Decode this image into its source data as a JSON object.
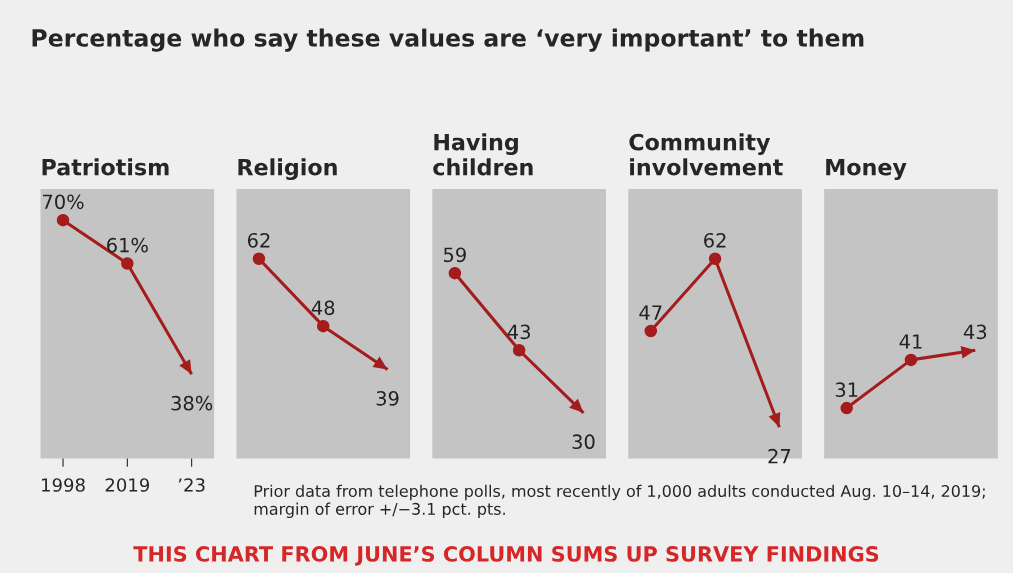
{
  "chart_data": [
    {
      "type": "line",
      "title": "Patriotism",
      "categories": [
        "1998",
        "2019",
        "’23"
      ],
      "values": [
        70,
        61,
        38
      ],
      "value_labels": [
        "70%",
        "61%",
        "38%"
      ],
      "color": "#a51c1c",
      "marker": "circle",
      "line_style": "solid",
      "tick_labels": "x",
      "annotations": [
        "Percentage who say these values are ‘very important’ to them",
        "Prior data from telephone polls, most recently of 1,000 adults conducted Aug. 10–14, 2019; margin of error +/−3.1 pct. pts.",
        "THIS CHART FROM JUNE’S COLUMN SUMS UP SURVEY FINDINGS"
      ]
    },
    {
      "type": "line",
      "title": "Religion",
      "categories": [
        null,
        null,
        null
      ],
      "values": [
        62,
        48,
        39
      ],
      "data_labels": true,
      "color": "#a51c1c",
      "marker": "circle",
      "line_style": "solid",
      "tick_labels": false
    },
    {
      "type": "line",
      "title": "Having\nchildren",
      "categories": [
        null,
        null,
        null
      ],
      "values": [
        59,
        43,
        30
      ],
      "data_labels": true,
      "color": "#a51c1c",
      "marker": "circle",
      "line_style": "solid",
      "tick_labels": false
    },
    {
      "type": "line",
      "title": "Community\ninvolvement",
      "categories": [
        null,
        null,
        null
      ],
      "values": [
        47,
        62,
        27
      ],
      "data_labels": true,
      "color": "#a51c1c",
      "marker": "circle",
      "line_style": "solid",
      "tick_labels": false
    },
    {
      "type": "line",
      "title": "Money",
      "categories": [
        null,
        null,
        null
      ],
      "values": [
        31,
        41,
        43
      ],
      "data_labels": true,
      "color": "#a51c1c",
      "marker": "circle",
      "line_style": "solid",
      "tick_labels": false
    }
  ]
}
